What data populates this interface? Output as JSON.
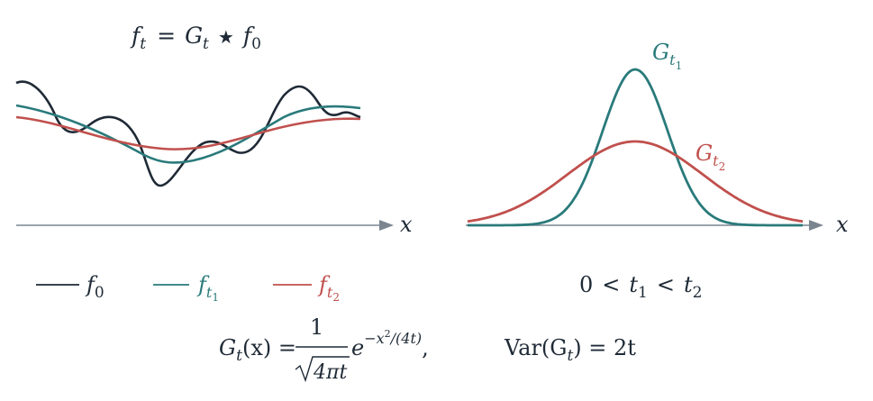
{
  "left_panel": {
    "title": {
      "lhs_f": "f",
      "lhs_sub": "t",
      "eq": "=",
      "G": "G",
      "G_sub": "t",
      "star": "★",
      "f0": "f",
      "f0_sub": "0"
    },
    "axis_label": "x",
    "legend": [
      {
        "name": "f",
        "sub": "0",
        "subsub": "",
        "color": "#1f2a36"
      },
      {
        "name": "f",
        "sub": "t",
        "subsub": "1",
        "color": "#2a7a7b"
      },
      {
        "name": "f",
        "sub": "t",
        "subsub": "2",
        "color": "#c0504d"
      }
    ]
  },
  "right_panel": {
    "axis_label": "x",
    "curve_labels": [
      {
        "name": "G",
        "sub": "t",
        "subsub": "1",
        "color": "#2a7a7b"
      },
      {
        "name": "G",
        "sub": "t",
        "subsub": "2",
        "color": "#c0504d"
      }
    ],
    "condition": {
      "zero": "0",
      "lt1": "<",
      "t1": "t",
      "t1_sub": "1",
      "lt2": "<",
      "t2": "t",
      "t2_sub": "2"
    }
  },
  "formula": {
    "lhs": "G",
    "lhs_sub": "t",
    "lhs_arg": "(x) =",
    "num": "1",
    "sqrt_body": "4πt",
    "exp_base": "e",
    "exp": "−x",
    "exp_sq": "2",
    "exp_rest": "/(4t)",
    "comma": ",",
    "var_label": "Var(G",
    "var_sub": "t",
    "var_rhs": ") = 2t"
  },
  "colors": {
    "ink": "#1f2a36",
    "teal": "#2a7a7b",
    "red": "#c0504d",
    "axis": "#7a8590"
  }
}
